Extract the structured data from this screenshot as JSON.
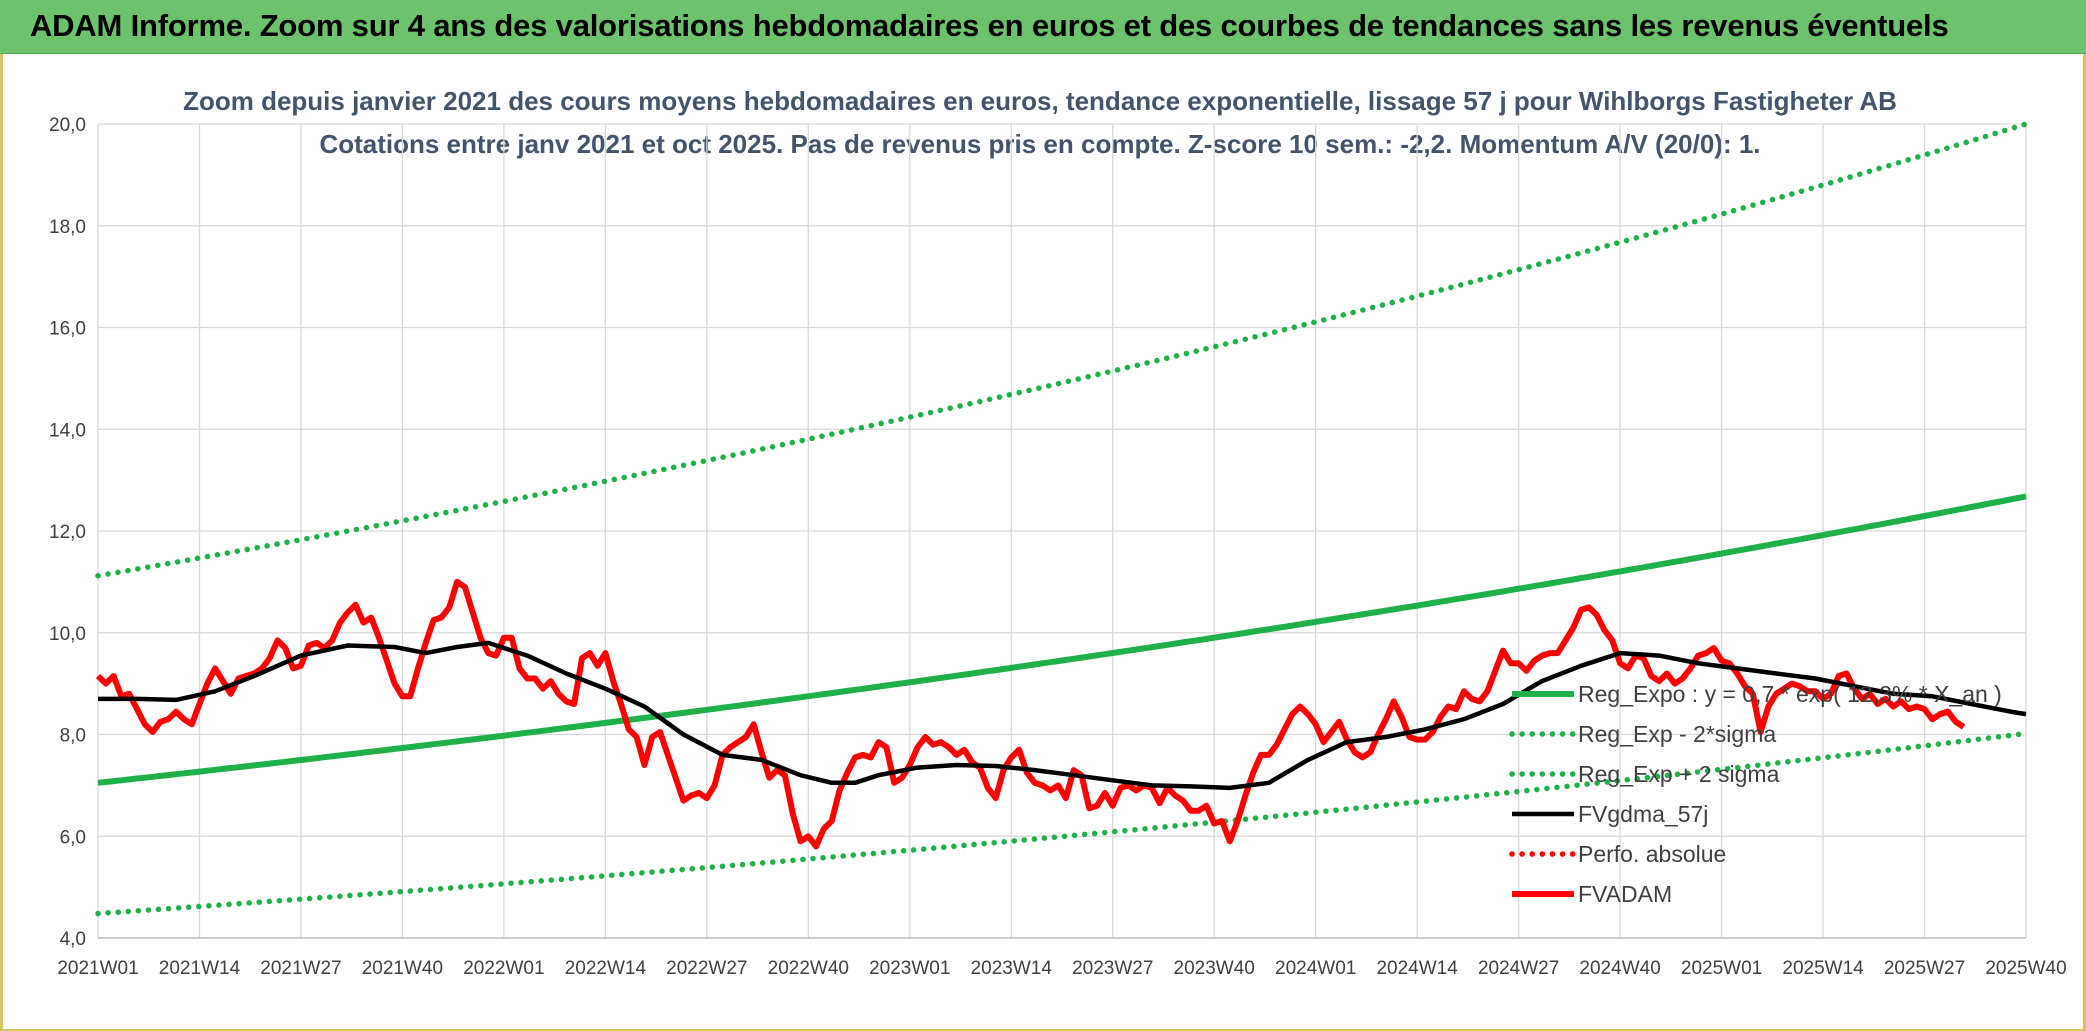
{
  "banner": {
    "title": "ADAM Informe. Zoom sur 4 ans des valorisations hebdomadaires en euros et des courbes de tendances sans les revenus éventuels"
  },
  "chart_data": {
    "type": "line",
    "title": "Zoom depuis janvier 2021 des cours moyens hebdomadaires en euros, tendance exponentielle, lissage 57 j pour Wihlborgs Fastigheter AB",
    "subtitle": "Cotations entre janv 2021 et oct 2025. Pas de revenus pris en compte. Z-score 10 sem.: -2,2. Momentum A/V (20/0): 1.",
    "xlabel": "",
    "ylabel": "",
    "ylim": [
      4.0,
      20.0
    ],
    "yticks": [
      "4,0",
      "6,0",
      "8,0",
      "10,0",
      "12,0",
      "14,0",
      "16,0",
      "18,0",
      "20,0"
    ],
    "xlim": [
      0,
      247
    ],
    "xtick_positions": [
      0,
      13,
      26,
      39,
      52,
      65,
      78,
      91,
      104,
      117,
      130,
      143,
      156,
      169,
      182,
      195,
      208,
      221,
      234,
      247
    ],
    "xtick_labels": [
      "2021W01",
      "2021W14",
      "2021W27",
      "2021W40",
      "2022W01",
      "2022W14",
      "2022W27",
      "2022W40",
      "2023W01",
      "2023W14",
      "2023W27",
      "2023W40",
      "2024W01",
      "2024W14",
      "2024W27",
      "2024W40",
      "2025W01",
      "2025W14",
      "2025W27",
      "2025W40"
    ],
    "grid": true,
    "legend_position": "bottom-right",
    "colors": {
      "trend": "#1fb04a",
      "sigma": "#1fb04a",
      "smooth": "#000000",
      "perfo": "#ff0000",
      "price": "#ff0000"
    },
    "series": [
      {
        "name": "Reg_Expo : y = 0,7 * exp( 12,3% * X_an )",
        "key": "trend",
        "style": "solid",
        "function": "exponential",
        "start": 7.05,
        "end": 12.68
      },
      {
        "name": "Reg_Exp - 2*sigma",
        "key": "sigma_low",
        "style": "dotted",
        "function": "exponential",
        "start": 4.48,
        "end": 8.02
      },
      {
        "name": "Reg_Exp + 2 sigma",
        "key": "sigma_high",
        "style": "dotted",
        "function": "exponential",
        "start": 11.12,
        "end": 20.0
      },
      {
        "name": "FVgdma_57j",
        "key": "smooth",
        "style": "solid",
        "points": [
          [
            0,
            8.7
          ],
          [
            5,
            8.7
          ],
          [
            10,
            8.68
          ],
          [
            15,
            8.85
          ],
          [
            20,
            9.15
          ],
          [
            26,
            9.55
          ],
          [
            32,
            9.75
          ],
          [
            38,
            9.72
          ],
          [
            42,
            9.6
          ],
          [
            46,
            9.72
          ],
          [
            50,
            9.8
          ],
          [
            55,
            9.55
          ],
          [
            60,
            9.2
          ],
          [
            65,
            8.9
          ],
          [
            70,
            8.55
          ],
          [
            75,
            8.0
          ],
          [
            80,
            7.6
          ],
          [
            85,
            7.5
          ],
          [
            90,
            7.2
          ],
          [
            94,
            7.05
          ],
          [
            97,
            7.05
          ],
          [
            100,
            7.2
          ],
          [
            105,
            7.35
          ],
          [
            110,
            7.4
          ],
          [
            115,
            7.38
          ],
          [
            120,
            7.3
          ],
          [
            125,
            7.2
          ],
          [
            130,
            7.1
          ],
          [
            135,
            7.0
          ],
          [
            140,
            6.98
          ],
          [
            145,
            6.95
          ],
          [
            150,
            7.05
          ],
          [
            155,
            7.5
          ],
          [
            160,
            7.85
          ],
          [
            165,
            7.95
          ],
          [
            170,
            8.1
          ],
          [
            175,
            8.3
          ],
          [
            180,
            8.6
          ],
          [
            185,
            9.05
          ],
          [
            190,
            9.35
          ],
          [
            195,
            9.6
          ],
          [
            200,
            9.55
          ],
          [
            205,
            9.4
          ],
          [
            210,
            9.3
          ],
          [
            215,
            9.2
          ],
          [
            220,
            9.1
          ],
          [
            225,
            8.95
          ],
          [
            230,
            8.8
          ],
          [
            235,
            8.75
          ],
          [
            240,
            8.6
          ],
          [
            245,
            8.45
          ],
          [
            247,
            8.4
          ]
        ]
      },
      {
        "name": "Perfo. absolue",
        "key": "perfo",
        "style": "dotted",
        "points": []
      },
      {
        "name": "FVADAM",
        "key": "price",
        "style": "solid",
        "points": [
          [
            0,
            9.15
          ],
          [
            1,
            9.0
          ],
          [
            2,
            9.15
          ],
          [
            3,
            8.75
          ],
          [
            4,
            8.8
          ],
          [
            5,
            8.5
          ],
          [
            6,
            8.2
          ],
          [
            7,
            8.05
          ],
          [
            8,
            8.25
          ],
          [
            9,
            8.3
          ],
          [
            10,
            8.45
          ],
          [
            11,
            8.3
          ],
          [
            12,
            8.2
          ],
          [
            13,
            8.6
          ],
          [
            14,
            9.0
          ],
          [
            15,
            9.3
          ],
          [
            16,
            9.05
          ],
          [
            17,
            8.8
          ],
          [
            18,
            9.1
          ],
          [
            19,
            9.15
          ],
          [
            20,
            9.2
          ],
          [
            21,
            9.3
          ],
          [
            22,
            9.5
          ],
          [
            23,
            9.85
          ],
          [
            24,
            9.7
          ],
          [
            25,
            9.3
          ],
          [
            26,
            9.35
          ],
          [
            27,
            9.75
          ],
          [
            28,
            9.8
          ],
          [
            29,
            9.7
          ],
          [
            30,
            9.85
          ],
          [
            31,
            10.2
          ],
          [
            32,
            10.4
          ],
          [
            33,
            10.55
          ],
          [
            34,
            10.2
          ],
          [
            35,
            10.3
          ],
          [
            36,
            9.9
          ],
          [
            37,
            9.45
          ],
          [
            38,
            9.0
          ],
          [
            39,
            8.75
          ],
          [
            40,
            8.75
          ],
          [
            41,
            9.3
          ],
          [
            42,
            9.8
          ],
          [
            43,
            10.25
          ],
          [
            44,
            10.3
          ],
          [
            45,
            10.5
          ],
          [
            46,
            11.0
          ],
          [
            47,
            10.9
          ],
          [
            48,
            10.4
          ],
          [
            49,
            9.9
          ],
          [
            50,
            9.6
          ],
          [
            51,
            9.55
          ],
          [
            52,
            9.9
          ],
          [
            53,
            9.9
          ],
          [
            54,
            9.3
          ],
          [
            55,
            9.1
          ],
          [
            56,
            9.1
          ],
          [
            57,
            8.9
          ],
          [
            58,
            9.05
          ],
          [
            59,
            8.8
          ],
          [
            60,
            8.65
          ],
          [
            61,
            8.6
          ],
          [
            62,
            9.5
          ],
          [
            63,
            9.6
          ],
          [
            64,
            9.35
          ],
          [
            65,
            9.6
          ],
          [
            66,
            9.05
          ],
          [
            67,
            8.6
          ],
          [
            68,
            8.1
          ],
          [
            69,
            7.95
          ],
          [
            70,
            7.4
          ],
          [
            71,
            7.95
          ],
          [
            72,
            8.05
          ],
          [
            73,
            7.6
          ],
          [
            74,
            7.15
          ],
          [
            75,
            6.7
          ],
          [
            76,
            6.8
          ],
          [
            77,
            6.85
          ],
          [
            78,
            6.75
          ],
          [
            79,
            7.0
          ],
          [
            80,
            7.6
          ],
          [
            81,
            7.75
          ],
          [
            82,
            7.85
          ],
          [
            83,
            7.95
          ],
          [
            84,
            8.2
          ],
          [
            85,
            7.65
          ],
          [
            86,
            7.15
          ],
          [
            87,
            7.3
          ],
          [
            88,
            7.2
          ],
          [
            89,
            6.45
          ],
          [
            90,
            5.9
          ],
          [
            91,
            6.0
          ],
          [
            92,
            5.8
          ],
          [
            93,
            6.15
          ],
          [
            94,
            6.3
          ],
          [
            95,
            6.9
          ],
          [
            96,
            7.25
          ],
          [
            97,
            7.55
          ],
          [
            98,
            7.6
          ],
          [
            99,
            7.55
          ],
          [
            100,
            7.85
          ],
          [
            101,
            7.75
          ],
          [
            102,
            7.05
          ],
          [
            103,
            7.15
          ],
          [
            104,
            7.4
          ],
          [
            105,
            7.75
          ],
          [
            106,
            7.95
          ],
          [
            107,
            7.8
          ],
          [
            108,
            7.85
          ],
          [
            109,
            7.75
          ],
          [
            110,
            7.6
          ],
          [
            111,
            7.7
          ],
          [
            112,
            7.45
          ],
          [
            113,
            7.35
          ],
          [
            114,
            6.95
          ],
          [
            115,
            6.75
          ],
          [
            116,
            7.3
          ],
          [
            117,
            7.55
          ],
          [
            118,
            7.7
          ],
          [
            119,
            7.25
          ],
          [
            120,
            7.05
          ],
          [
            121,
            7.0
          ],
          [
            122,
            6.9
          ],
          [
            123,
            7.0
          ],
          [
            124,
            6.75
          ],
          [
            125,
            7.3
          ],
          [
            126,
            7.2
          ],
          [
            127,
            6.55
          ],
          [
            128,
            6.6
          ],
          [
            129,
            6.85
          ],
          [
            130,
            6.6
          ],
          [
            131,
            6.95
          ],
          [
            132,
            7.0
          ],
          [
            133,
            6.9
          ],
          [
            134,
            7.0
          ],
          [
            135,
            6.95
          ],
          [
            136,
            6.65
          ],
          [
            137,
            6.95
          ],
          [
            138,
            6.8
          ],
          [
            139,
            6.7
          ],
          [
            140,
            6.5
          ],
          [
            141,
            6.5
          ],
          [
            142,
            6.6
          ],
          [
            143,
            6.25
          ],
          [
            144,
            6.3
          ],
          [
            145,
            5.9
          ],
          [
            146,
            6.3
          ],
          [
            147,
            6.8
          ],
          [
            148,
            7.25
          ],
          [
            149,
            7.6
          ],
          [
            150,
            7.6
          ],
          [
            151,
            7.8
          ],
          [
            152,
            8.1
          ],
          [
            153,
            8.4
          ],
          [
            154,
            8.55
          ],
          [
            155,
            8.4
          ],
          [
            156,
            8.2
          ],
          [
            157,
            7.85
          ],
          [
            158,
            8.05
          ],
          [
            159,
            8.25
          ],
          [
            160,
            7.9
          ],
          [
            161,
            7.65
          ],
          [
            162,
            7.55
          ],
          [
            163,
            7.65
          ],
          [
            164,
            8.0
          ],
          [
            165,
            8.3
          ],
          [
            166,
            8.65
          ],
          [
            167,
            8.35
          ],
          [
            168,
            7.95
          ],
          [
            169,
            7.9
          ],
          [
            170,
            7.9
          ],
          [
            171,
            8.05
          ],
          [
            172,
            8.35
          ],
          [
            173,
            8.55
          ],
          [
            174,
            8.5
          ],
          [
            175,
            8.85
          ],
          [
            176,
            8.7
          ],
          [
            177,
            8.65
          ],
          [
            178,
            8.85
          ],
          [
            179,
            9.25
          ],
          [
            180,
            9.65
          ],
          [
            181,
            9.4
          ],
          [
            182,
            9.4
          ],
          [
            183,
            9.25
          ],
          [
            184,
            9.45
          ],
          [
            185,
            9.55
          ],
          [
            186,
            9.6
          ],
          [
            187,
            9.6
          ],
          [
            188,
            9.85
          ],
          [
            189,
            10.1
          ],
          [
            190,
            10.45
          ],
          [
            191,
            10.5
          ],
          [
            192,
            10.35
          ],
          [
            193,
            10.05
          ],
          [
            194,
            9.85
          ],
          [
            195,
            9.4
          ],
          [
            196,
            9.3
          ],
          [
            197,
            9.55
          ],
          [
            198,
            9.5
          ],
          [
            199,
            9.15
          ],
          [
            200,
            9.05
          ],
          [
            201,
            9.2
          ],
          [
            202,
            9.0
          ],
          [
            203,
            9.1
          ],
          [
            204,
            9.3
          ],
          [
            205,
            9.55
          ],
          [
            206,
            9.6
          ],
          [
            207,
            9.7
          ],
          [
            208,
            9.45
          ],
          [
            209,
            9.4
          ],
          [
            210,
            9.2
          ],
          [
            211,
            8.95
          ],
          [
            212,
            8.8
          ],
          [
            213,
            8.05
          ],
          [
            214,
            8.55
          ],
          [
            215,
            8.8
          ],
          [
            216,
            8.9
          ],
          [
            217,
            9.0
          ],
          [
            218,
            8.95
          ],
          [
            219,
            8.85
          ],
          [
            220,
            8.85
          ],
          [
            221,
            8.7
          ],
          [
            222,
            8.8
          ],
          [
            223,
            9.15
          ],
          [
            224,
            9.2
          ],
          [
            225,
            8.9
          ],
          [
            226,
            8.7
          ],
          [
            227,
            8.8
          ],
          [
            228,
            8.6
          ],
          [
            229,
            8.7
          ],
          [
            230,
            8.55
          ],
          [
            231,
            8.65
          ],
          [
            232,
            8.5
          ],
          [
            233,
            8.55
          ],
          [
            234,
            8.5
          ],
          [
            235,
            8.3
          ],
          [
            236,
            8.4
          ],
          [
            237,
            8.45
          ],
          [
            238,
            8.25
          ],
          [
            239,
            8.15
          ]
        ]
      }
    ]
  }
}
